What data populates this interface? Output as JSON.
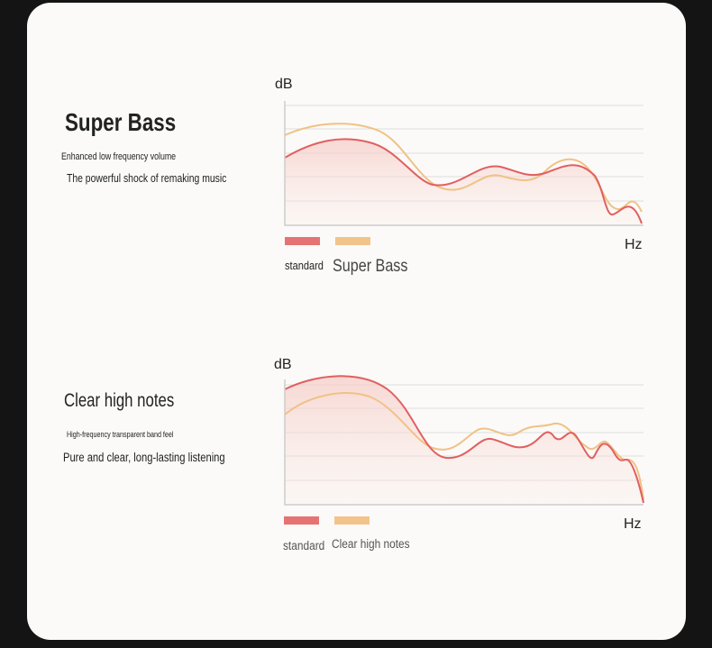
{
  "panels": [
    {
      "title": "Super Bass",
      "lines": [
        "Enhanced low frequency volume",
        "The powerful shock of remaking music"
      ],
      "y_label": "dB",
      "x_label": "Hz",
      "legend": [
        "standard",
        "Super Bass"
      ]
    },
    {
      "title": "Clear high notes",
      "lines": [
        "High-frequency transparent band feel",
        "Pure and clear, long-lasting listening"
      ],
      "y_label": "dB",
      "x_label": "Hz",
      "legend": [
        "standard",
        "Clear high notes"
      ]
    }
  ]
}
